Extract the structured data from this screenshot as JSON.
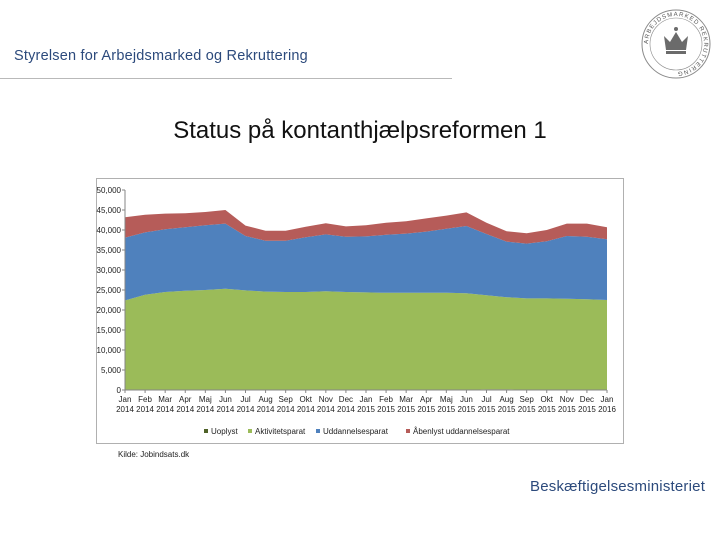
{
  "header": {
    "org_name": "Styrelsen for Arbejdsmarked og Rekruttering",
    "logo_text": "ARBEJDSMARKED REKRUTTERING"
  },
  "slide": {
    "title": "Status på kontanthjælpsreformen 1",
    "source": "Kilde: Jobindsats.dk",
    "ministry": "Beskæftigelsesministeriet"
  },
  "chart_data": {
    "type": "area",
    "stacked": true,
    "title": "",
    "xlabel": "",
    "ylabel": "",
    "ylim": [
      0,
      50000
    ],
    "y_ticks": [
      "0",
      "5,000",
      "10,000",
      "15,000",
      "20,000",
      "25,000",
      "30,000",
      "35,000",
      "40,000",
      "45,000",
      "50,000"
    ],
    "grid": false,
    "legend_position": "bottom",
    "categories": [
      {
        "month": "Jan",
        "year": "2014"
      },
      {
        "month": "Feb",
        "year": "2014"
      },
      {
        "month": "Mar",
        "year": "2014"
      },
      {
        "month": "Apr",
        "year": "2014"
      },
      {
        "month": "Maj",
        "year": "2014"
      },
      {
        "month": "Jun",
        "year": "2014"
      },
      {
        "month": "Jul",
        "year": "2014"
      },
      {
        "month": "Aug",
        "year": "2014"
      },
      {
        "month": "Sep",
        "year": "2014"
      },
      {
        "month": "Okt",
        "year": "2014"
      },
      {
        "month": "Nov",
        "year": "2014"
      },
      {
        "month": "Dec",
        "year": "2014"
      },
      {
        "month": "Jan",
        "year": "2015"
      },
      {
        "month": "Feb",
        "year": "2015"
      },
      {
        "month": "Mar",
        "year": "2015"
      },
      {
        "month": "Apr",
        "year": "2015"
      },
      {
        "month": "Maj",
        "year": "2015"
      },
      {
        "month": "Jun",
        "year": "2015"
      },
      {
        "month": "Jul",
        "year": "2015"
      },
      {
        "month": "Aug",
        "year": "2015"
      },
      {
        "month": "Sep",
        "year": "2015"
      },
      {
        "month": "Okt",
        "year": "2015"
      },
      {
        "month": "Nov",
        "year": "2015"
      },
      {
        "month": "Dec",
        "year": "2015"
      },
      {
        "month": "Jan",
        "year": "2016"
      }
    ],
    "series": [
      {
        "name": "Uoplyst",
        "color": "#4f6228",
        "values": [
          0,
          0,
          0,
          0,
          0,
          0,
          0,
          0,
          0,
          0,
          0,
          0,
          0,
          0,
          0,
          0,
          0,
          0,
          200,
          200,
          0,
          0,
          0,
          0,
          0
        ]
      },
      {
        "name": "Aktivitetsparat",
        "color": "#9bbb59",
        "values": [
          22400,
          23800,
          24500,
          24800,
          25000,
          25300,
          24900,
          24600,
          24500,
          24500,
          24700,
          24500,
          24400,
          24300,
          24300,
          24300,
          24300,
          24200,
          23500,
          23000,
          22900,
          22900,
          22800,
          22700,
          22500
        ]
      },
      {
        "name": "Uddannelsesparat",
        "color": "#4f81bd",
        "values": [
          15700,
          15600,
          15700,
          15900,
          16200,
          16300,
          13600,
          12700,
          12800,
          13700,
          14200,
          13800,
          14000,
          14500,
          14800,
          15300,
          16000,
          16800,
          15300,
          13900,
          13700,
          14300,
          15700,
          15600,
          15200
        ]
      },
      {
        "name": "Åbenlyst uddannelsesparat",
        "color": "#b65c59",
        "values": [
          5100,
          4400,
          3900,
          3500,
          3300,
          3400,
          2600,
          2500,
          2500,
          2600,
          2800,
          2600,
          2800,
          3000,
          3100,
          3300,
          3300,
          3400,
          2800,
          2600,
          2600,
          2800,
          3100,
          3300,
          3000
        ]
      }
    ]
  }
}
